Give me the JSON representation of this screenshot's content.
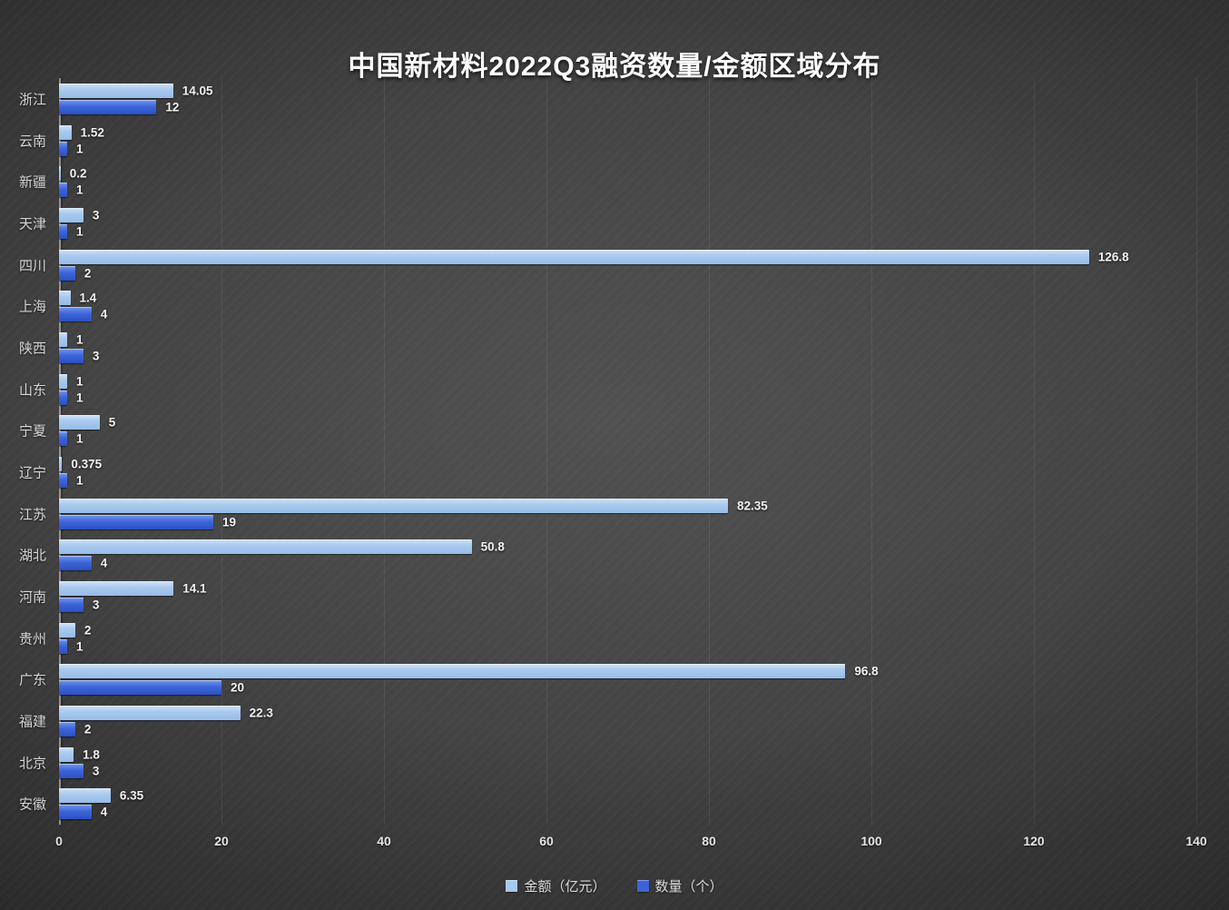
{
  "title": "中国新材料2022Q3融资数量/金额区域分布",
  "legend": {
    "items": [
      {
        "label": "金额（亿元）",
        "color": "#a8c9ee"
      },
      {
        "label": "数量（个）",
        "color": "#3c64d8"
      }
    ]
  },
  "colors": {
    "background_center": "#525252",
    "background_edge": "#1d1d1d",
    "amount_bar": "#a8c9ee",
    "count_bar": "#3c64d8",
    "title_text": "#ffffff",
    "axis_text": "#e6e6e6"
  },
  "chart_data": {
    "type": "bar",
    "orientation": "horizontal",
    "title": "中国新材料2022Q3融资数量/金额区域分布",
    "categories": [
      "浙江",
      "云南",
      "新疆",
      "天津",
      "四川",
      "上海",
      "陕西",
      "山东",
      "宁夏",
      "辽宁",
      "江苏",
      "湖北",
      "河南",
      "贵州",
      "广东",
      "福建",
      "北京",
      "安徽"
    ],
    "series": [
      {
        "name": "金额（亿元）",
        "color": "#a8c9ee",
        "values": [
          14.05,
          1.52,
          0.2,
          3,
          126.8,
          1.4,
          1,
          1,
          5,
          0.375,
          82.35,
          50.8,
          14.1,
          2,
          96.8,
          22.3,
          1.8,
          6.35
        ]
      },
      {
        "name": "数量（个）",
        "color": "#3c64d8",
        "values": [
          12,
          1,
          1,
          1,
          2,
          4,
          3,
          1,
          1,
          1,
          19,
          4,
          3,
          1,
          20,
          2,
          3,
          4
        ]
      }
    ],
    "xlim": [
      0,
      140
    ],
    "xticks": [
      0,
      20,
      40,
      60,
      80,
      100,
      120,
      140
    ],
    "grid": true,
    "legend_position": "bottom"
  }
}
